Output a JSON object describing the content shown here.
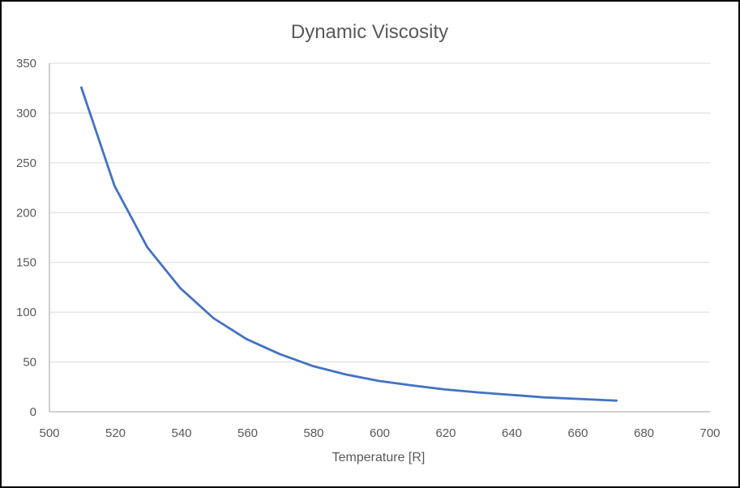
{
  "chart_data": {
    "type": "line",
    "title": "Dynamic Viscosity",
    "xlabel": "Temperature [R]",
    "ylabel": "",
    "xlim": [
      500,
      700
    ],
    "ylim": [
      0,
      350
    ],
    "xticks": [
      "500",
      "520",
      "540",
      "560",
      "580",
      "600",
      "620",
      "640",
      "660",
      "680",
      "700"
    ],
    "yticks": [
      "0",
      "50",
      "100",
      "150",
      "200",
      "250",
      "300",
      "350"
    ],
    "grid": "horizontal",
    "legend": "none",
    "series": [
      {
        "name": "Dynamic Viscosity",
        "color": "#4472C4",
        "x": [
          509.67,
          519.67,
          529.67,
          539.67,
          549.67,
          559.67,
          569.67,
          579.67,
          589.67,
          599.67,
          609.67,
          619.67,
          629.67,
          639.67,
          649.67,
          659.67,
          669.67,
          671.67
        ],
        "y": [
          325.6,
          227,
          165,
          124,
          94,
          73,
          58,
          46,
          37.5,
          31,
          26.5,
          22.5,
          19.5,
          17,
          14.5,
          13,
          11.5,
          11.2
        ]
      }
    ]
  },
  "colors": {
    "grid": "#D9D9D9",
    "axis": "#BFBFBF",
    "text": "#595959"
  }
}
